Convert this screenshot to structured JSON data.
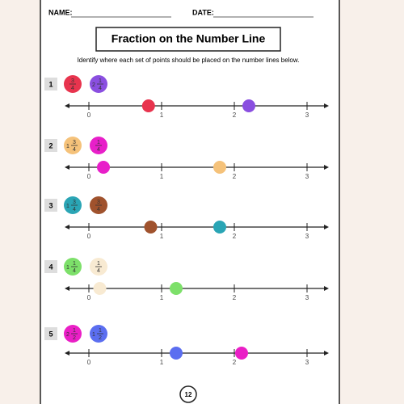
{
  "header": {
    "name_label": "NAME:",
    "date_label": "DATE:",
    "title": "Fraction on the Number Line",
    "instruction": "Identify where each set of points should be placed on the number lines below."
  },
  "number_line": {
    "ticks": [
      0,
      1,
      2,
      3
    ]
  },
  "problems": [
    {
      "number": 1,
      "points": [
        {
          "numerator": 3,
          "denominator": 4,
          "color": "#e8344e",
          "position": 0.82
        },
        {
          "whole": 2,
          "numerator": 1,
          "denominator": 4,
          "color": "#8a4fe0",
          "position": 2.2
        }
      ]
    },
    {
      "number": 2,
      "points": [
        {
          "whole": 1,
          "numerator": 3,
          "denominator": 4,
          "color": "#f5c27a",
          "position": 1.8
        },
        {
          "numerator": 1,
          "denominator": 4,
          "color": "#e81fc9",
          "position": 0.2
        }
      ]
    },
    {
      "number": 3,
      "points": [
        {
          "whole": 1,
          "numerator": 3,
          "denominator": 4,
          "color": "#2aa5b5",
          "position": 1.8
        },
        {
          "numerator": 3,
          "denominator": 4,
          "color": "#a0522d",
          "position": 0.85
        }
      ]
    },
    {
      "number": 4,
      "points": [
        {
          "whole": 1,
          "numerator": 1,
          "denominator": 4,
          "color": "#7de06a",
          "position": 1.2
        },
        {
          "numerator": 1,
          "denominator": 4,
          "color": "#f8ead2",
          "position": 0.15
        }
      ]
    },
    {
      "number": 5,
      "points": [
        {
          "whole": 2,
          "numerator": 1,
          "denominator": 2,
          "color": "#ea1fc6",
          "position": 2.1
        },
        {
          "whole": 1,
          "numerator": 1,
          "denominator": 2,
          "color": "#5b6ef0",
          "position": 1.2
        }
      ]
    }
  ],
  "page_number": 12
}
